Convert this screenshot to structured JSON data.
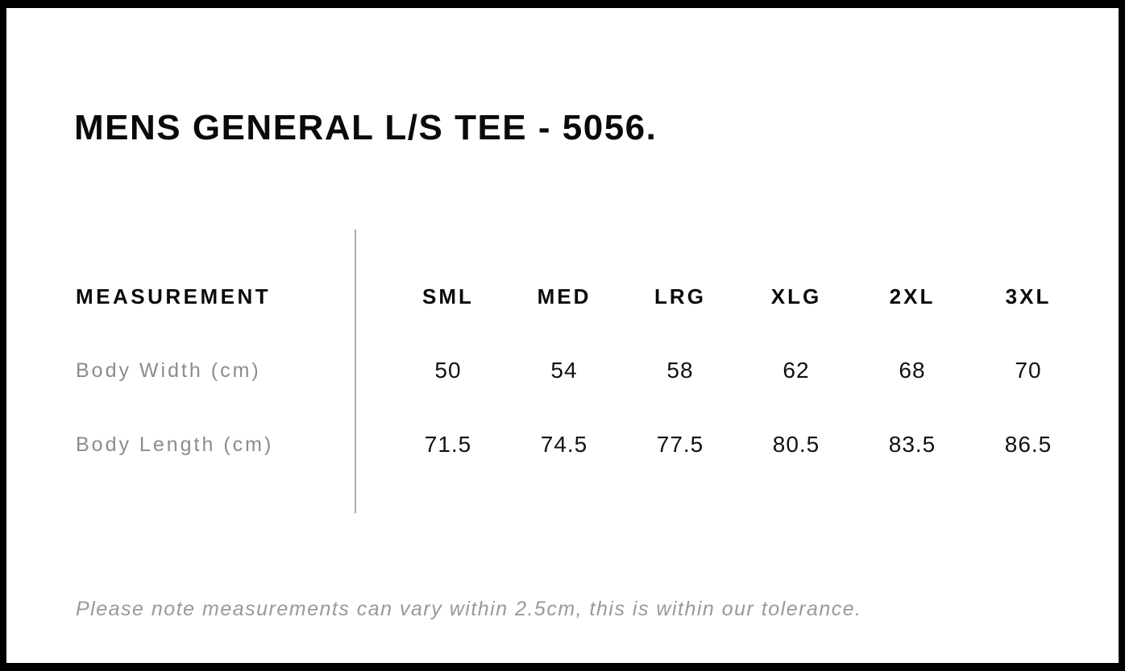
{
  "page": {
    "title": "MENS GENERAL L/S TEE - 5056.",
    "note": "Please note measurements can vary within 2.5cm, this is within our tolerance."
  },
  "table": {
    "header": [
      "MEASUREMENT",
      "SML",
      "MED",
      "LRG",
      "XLG",
      "2XL",
      "3XL"
    ],
    "rows": [
      {
        "label": "Body Width (cm)",
        "values": [
          "50",
          "54",
          "58",
          "62",
          "68",
          "70"
        ]
      },
      {
        "label": "Body Length (cm)",
        "values": [
          "71.5",
          "74.5",
          "77.5",
          "80.5",
          "83.5",
          "86.5"
        ]
      }
    ]
  },
  "colors": {
    "frame": "#000000",
    "heading_text": "#0a0a0a",
    "value_text": "#111111",
    "label_gray": "#8c8c8c",
    "note_gray": "#999999",
    "divider_gray": "#ababab",
    "background": "#ffffff"
  }
}
